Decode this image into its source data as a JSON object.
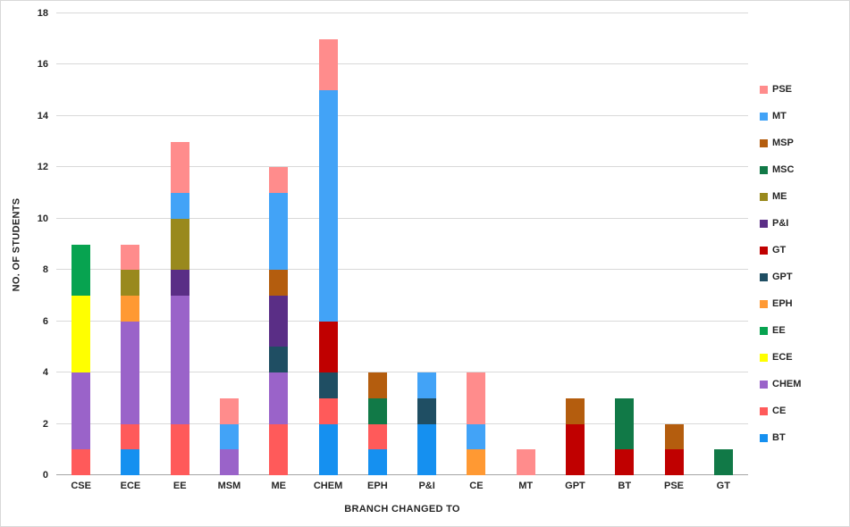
{
  "chart_data": {
    "type": "bar",
    "subtype": "stacked",
    "title": "",
    "xlabel": "BRANCH CHANGED TO",
    "ylabel": "NO. OF STUDENTS",
    "ylim": [
      0,
      18
    ],
    "ytick_step": 2,
    "yticks": [
      0,
      2,
      4,
      6,
      8,
      10,
      12,
      14,
      16,
      18
    ],
    "grid": true,
    "legend_position": "right",
    "background_color": "#FFFFFF",
    "gridline_color": "#D9D9D9",
    "categories": [
      "CSE",
      "ECE",
      "EE",
      "MSM",
      "ME",
      "CHEM",
      "EPH",
      "P&I",
      "CE",
      "MT",
      "GPT",
      "BT",
      "PSE",
      "GT"
    ],
    "series": [
      {
        "name": "BT",
        "color": "#1590F0",
        "values": [
          0,
          1,
          0,
          0,
          0,
          2,
          1,
          2,
          0,
          0,
          0,
          0,
          0,
          0
        ]
      },
      {
        "name": "CE",
        "color": "#FF5A5A",
        "values": [
          1,
          1,
          2,
          0,
          2,
          1,
          1,
          0,
          0,
          0,
          0,
          0,
          0,
          0
        ]
      },
      {
        "name": "CHEM",
        "color": "#9A63C9",
        "values": [
          3,
          4,
          5,
          1,
          2,
          0,
          0,
          0,
          0,
          0,
          0,
          0,
          0,
          0
        ]
      },
      {
        "name": "ECE",
        "color": "#FFFF00",
        "values": [
          3,
          0,
          0,
          0,
          0,
          0,
          0,
          0,
          0,
          0,
          0,
          0,
          0,
          0
        ]
      },
      {
        "name": "EE",
        "color": "#07A350",
        "values": [
          2,
          0,
          0,
          0,
          0,
          0,
          0,
          0,
          0,
          0,
          0,
          0,
          0,
          0
        ]
      },
      {
        "name": "EPH",
        "color": "#FF9933",
        "values": [
          0,
          1,
          0,
          0,
          0,
          0,
          0,
          0,
          1,
          0,
          0,
          0,
          0,
          0
        ]
      },
      {
        "name": "GPT",
        "color": "#1F4E63",
        "values": [
          0,
          0,
          0,
          0,
          1,
          1,
          0,
          1,
          0,
          0,
          0,
          0,
          0,
          0
        ]
      },
      {
        "name": "GT",
        "color": "#C00000",
        "values": [
          0,
          0,
          0,
          0,
          0,
          2,
          0,
          0,
          0,
          0,
          2,
          1,
          1,
          0
        ]
      },
      {
        "name": "P&I",
        "color": "#5A2E86",
        "values": [
          0,
          0,
          1,
          0,
          2,
          0,
          0,
          0,
          0,
          0,
          0,
          0,
          0,
          0
        ]
      },
      {
        "name": "ME",
        "color": "#99891D",
        "values": [
          0,
          1,
          2,
          0,
          0,
          0,
          0,
          0,
          0,
          0,
          0,
          0,
          0,
          0
        ]
      },
      {
        "name": "MSC",
        "color": "#117947",
        "values": [
          0,
          0,
          0,
          0,
          0,
          0,
          1,
          0,
          0,
          0,
          0,
          2,
          0,
          1
        ]
      },
      {
        "name": "MSP",
        "color": "#B45D0E",
        "values": [
          0,
          0,
          0,
          0,
          1,
          0,
          1,
          0,
          0,
          0,
          1,
          0,
          1,
          0
        ]
      },
      {
        "name": "MT",
        "color": "#42A3F7",
        "values": [
          0,
          0,
          1,
          1,
          3,
          9,
          0,
          1,
          1,
          0,
          0,
          0,
          0,
          0
        ]
      },
      {
        "name": "PSE",
        "color": "#FF8C8C",
        "values": [
          0,
          1,
          2,
          1,
          1,
          2,
          0,
          0,
          2,
          1,
          0,
          0,
          0,
          0
        ]
      }
    ],
    "legend_items": [
      "PSE",
      "MT",
      "MSP",
      "MSC",
      "ME",
      "P&I",
      "GT",
      "GPT",
      "EPH",
      "EE",
      "ECE",
      "CHEM",
      "CE",
      "BT"
    ]
  }
}
